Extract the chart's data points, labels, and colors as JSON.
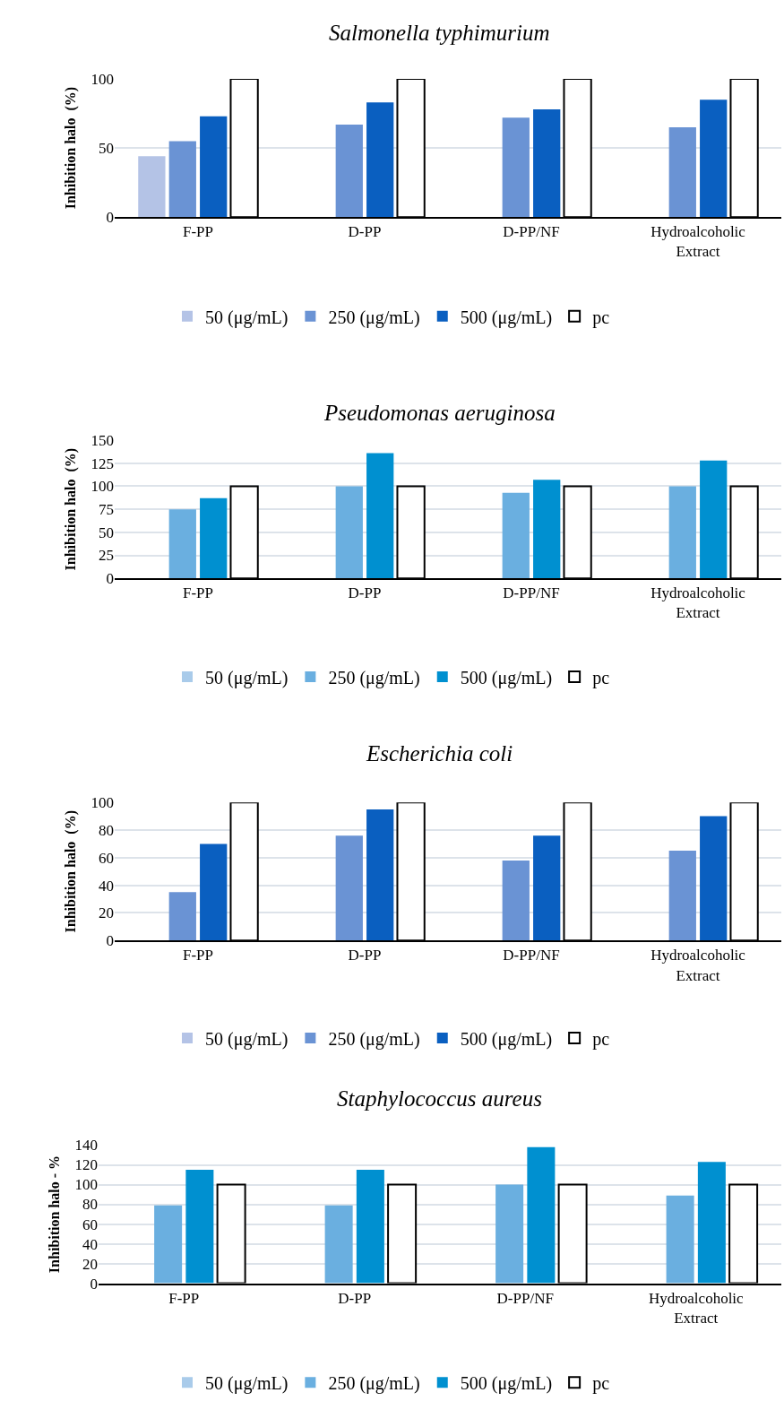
{
  "chart_data": [
    {
      "type": "bar",
      "title": "Salmonella typhimurium",
      "ylabel": "Inhibition halo  (%)",
      "categories": [
        "F-PP",
        "D-PP",
        "D-PP/NF",
        "Hydroalcoholic Extract"
      ],
      "ylim": [
        0,
        100
      ],
      "yticks": [
        0,
        50,
        100
      ],
      "grid": "y",
      "legend": "bottom",
      "series": [
        {
          "name": "50 (μg/mL)",
          "color": "#b4c3e6",
          "values": [
            44,
            null,
            null,
            null
          ]
        },
        {
          "name": "250 (μg/mL)",
          "color": "#6a93d4",
          "values": [
            55,
            67,
            72,
            65
          ]
        },
        {
          "name": "500 (μg/mL)",
          "color": "#0a5fc0",
          "values": [
            73,
            83,
            78,
            85
          ]
        },
        {
          "name": "pc",
          "color": "#ffffff",
          "values": [
            100,
            100,
            100,
            100
          ]
        }
      ]
    },
    {
      "type": "bar",
      "title": "Pseudomonas aeruginosa",
      "ylabel": "Inhibition halo  (%)",
      "categories": [
        "F-PP",
        "D-PP",
        "D-PP/NF",
        "Hydroalcoholic Extract"
      ],
      "ylim": [
        0,
        150
      ],
      "yticks": [
        0,
        25,
        50,
        75,
        100,
        125,
        150
      ],
      "grid": "y",
      "legend": "bottom",
      "series": [
        {
          "name": "50 (μg/mL)",
          "color": "#a9cbea",
          "values": [
            null,
            null,
            null,
            null
          ]
        },
        {
          "name": "250 (μg/mL)",
          "color": "#6aafe0",
          "values": [
            75,
            100,
            93,
            100
          ]
        },
        {
          "name": "500 (μg/mL)",
          "color": "#0090d0",
          "values": [
            87,
            136,
            107,
            128
          ]
        },
        {
          "name": "pc",
          "color": "#ffffff",
          "values": [
            100,
            100,
            100,
            100
          ]
        }
      ]
    },
    {
      "type": "bar",
      "title": "Escherichia coli",
      "ylabel": "Inhibition halo  (%)",
      "categories": [
        "F-PP",
        "D-PP",
        "D-PP/NF",
        "Hydroalcoholic Extract"
      ],
      "ylim": [
        0,
        100
      ],
      "yticks": [
        0,
        20,
        40,
        60,
        80,
        100
      ],
      "grid": "y",
      "legend": "bottom",
      "series": [
        {
          "name": "50 (μg/mL)",
          "color": "#b4c3e6",
          "values": [
            null,
            null,
            null,
            null
          ]
        },
        {
          "name": "250 (μg/mL)",
          "color": "#6a93d4",
          "values": [
            35,
            76,
            58,
            65
          ]
        },
        {
          "name": "500 (μg/mL)",
          "color": "#0a5fc0",
          "values": [
            70,
            95,
            76,
            90
          ]
        },
        {
          "name": "pc",
          "color": "#ffffff",
          "values": [
            100,
            100,
            100,
            100
          ]
        }
      ]
    },
    {
      "type": "bar",
      "title": "Staphylococcus aureus",
      "ylabel": "Inhibition halo - %",
      "categories": [
        "F-PP",
        "D-PP",
        "D-PP/NF",
        "Hydroalcoholic Extract"
      ],
      "ylim": [
        0,
        140
      ],
      "yticks": [
        0,
        20,
        40,
        60,
        80,
        100,
        120,
        140
      ],
      "grid": "y",
      "legend": "bottom",
      "series": [
        {
          "name": "50 (μg/mL)",
          "color": "#a9cbea",
          "values": [
            null,
            null,
            null,
            null
          ]
        },
        {
          "name": "250 (μg/mL)",
          "color": "#6aafe0",
          "values": [
            79,
            79,
            100,
            89
          ]
        },
        {
          "name": "500 (μg/mL)",
          "color": "#0090d0",
          "values": [
            115,
            115,
            138,
            123
          ]
        },
        {
          "name": "pc",
          "color": "#ffffff",
          "values": [
            100,
            100,
            100,
            100
          ]
        }
      ]
    }
  ]
}
